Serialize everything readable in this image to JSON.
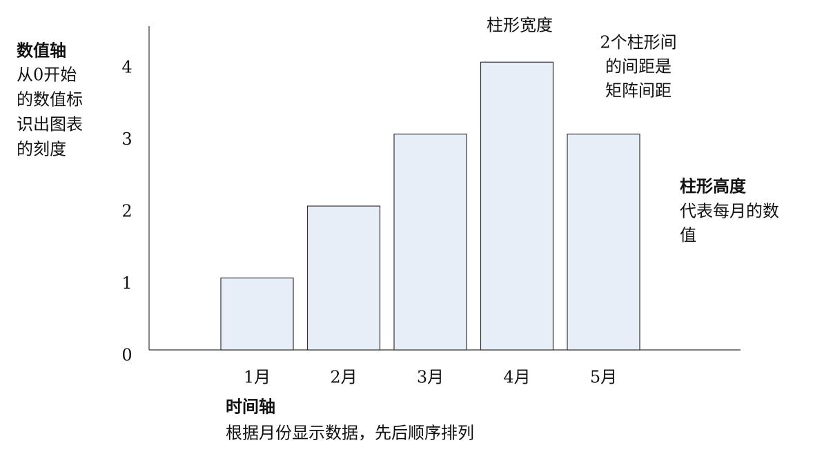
{
  "chart_data": {
    "type": "bar",
    "categories": [
      "1月",
      "2月",
      "3月",
      "4月",
      "5月"
    ],
    "values": [
      1,
      2,
      3,
      4,
      3
    ],
    "color": "#e8eef8",
    "ylim": [
      0,
      4.5
    ],
    "yticks": [
      0,
      1,
      2,
      3,
      4
    ],
    "grid": false,
    "annotations": [
      {
        "title": "数值轴",
        "lines": [
          "从0开始",
          "的数值标",
          "识出图表",
          "的刻度"
        ]
      },
      {
        "lines": [
          "柱形宽度"
        ]
      },
      {
        "lines": [
          "2个柱形间",
          "的间距是",
          "矩阵间距"
        ]
      },
      {
        "title": "柱形高度",
        "lines": [
          "代表每月的数",
          "值"
        ]
      },
      {
        "title": "时间轴",
        "lines": [
          "根据月份显示数据，先后顺序排列"
        ]
      }
    ]
  }
}
